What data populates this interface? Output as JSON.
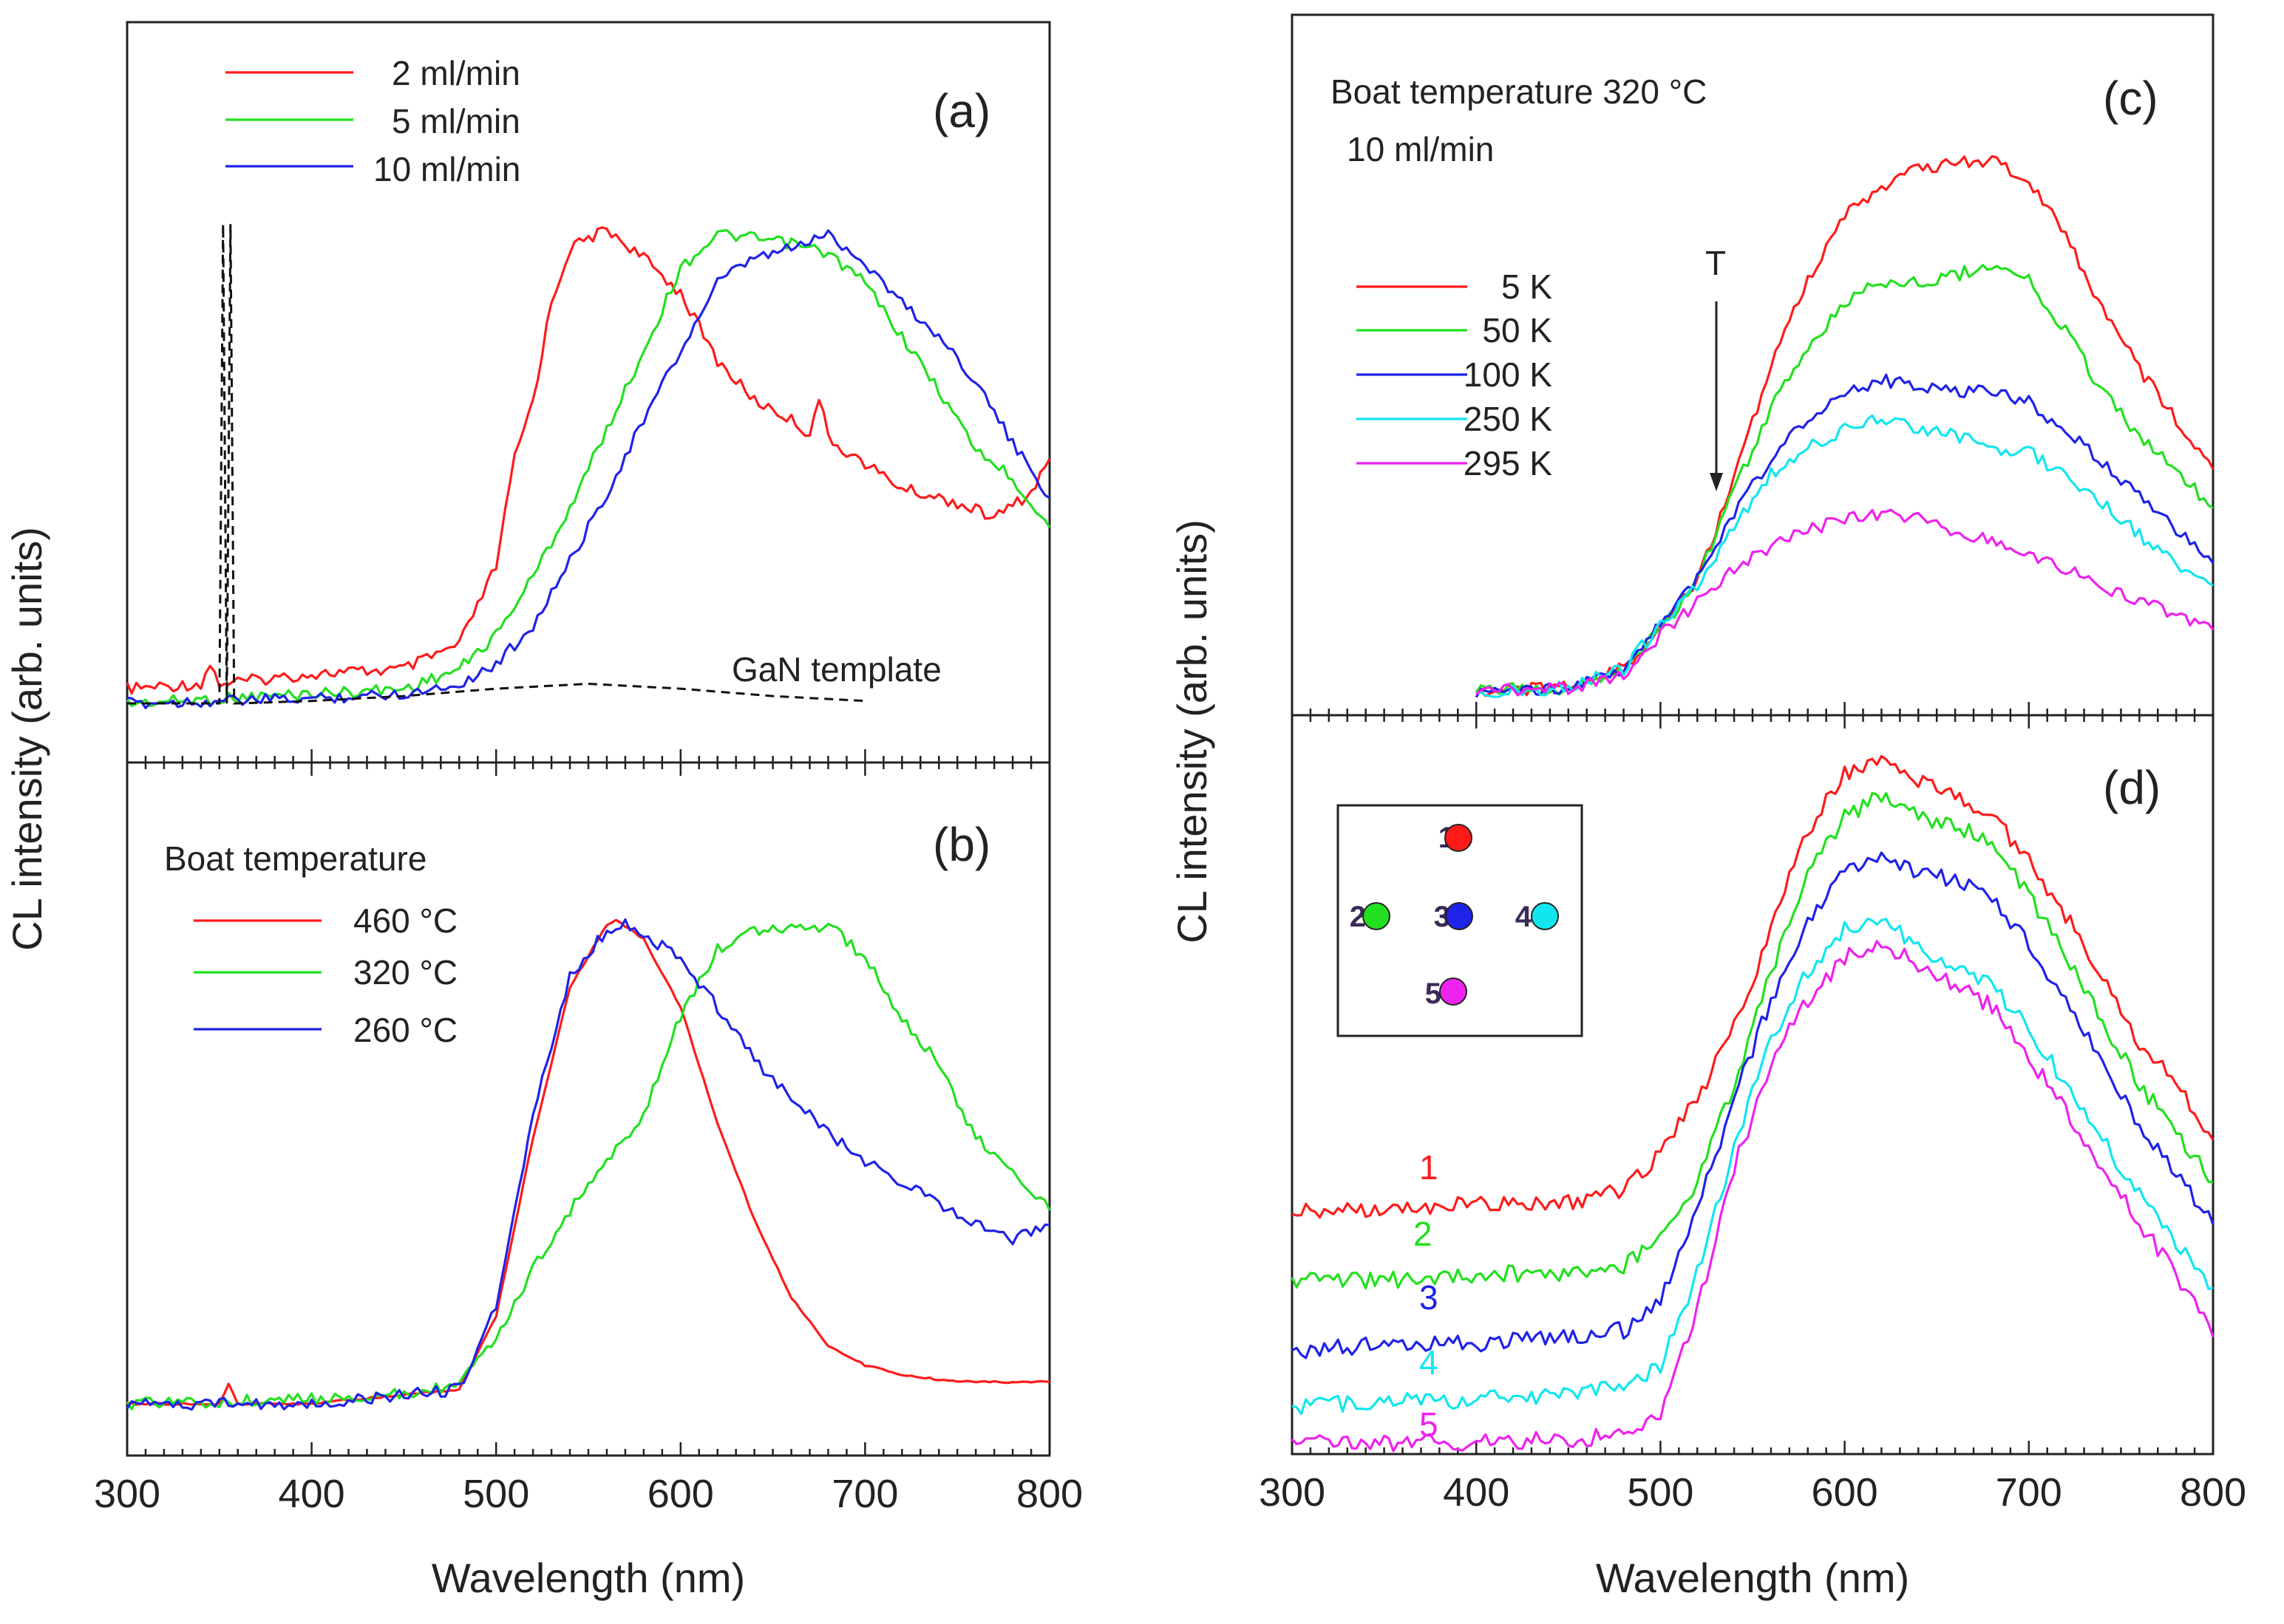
{
  "colors": {
    "red": "#ff1a1a",
    "green": "#22e01f",
    "blue": "#1f22e8",
    "cyan": "#11e6f0",
    "magenta": "#ee22ee",
    "black": "#111111"
  },
  "chart_data": [
    {
      "id": "a",
      "type": "line",
      "panel_label": "(a)",
      "xlim": [
        300,
        800
      ],
      "xticks": [
        "300",
        "400",
        "500",
        "600",
        "700",
        "800"
      ],
      "xlabel": "Wavelength (nm)",
      "ylabel": "CL intensity (arb. units)",
      "ylim": [
        0,
        1
      ],
      "legend": [
        "2 ml/min",
        "5 ml/min",
        "10 ml/min"
      ],
      "legend_position": "top-left",
      "annotation": "GaN template",
      "series": [
        {
          "name": "2 ml/min",
          "color": "red",
          "x": [
            300,
            340,
            345,
            350,
            400,
            450,
            480,
            500,
            510,
            520,
            530,
            540,
            560,
            580,
            600,
            620,
            640,
            660,
            670,
            675,
            680,
            700,
            720,
            750,
            770,
            790,
            800
          ],
          "y": [
            0.03,
            0.04,
            0.08,
            0.04,
            0.06,
            0.07,
            0.12,
            0.28,
            0.5,
            0.62,
            0.82,
            0.93,
            0.97,
            0.91,
            0.84,
            0.7,
            0.62,
            0.58,
            0.55,
            0.63,
            0.54,
            0.49,
            0.44,
            0.41,
            0.38,
            0.43,
            0.5
          ]
        },
        {
          "name": "5 ml/min",
          "color": "green",
          "x": [
            300,
            400,
            450,
            480,
            500,
            520,
            540,
            560,
            580,
            600,
            620,
            640,
            660,
            680,
            700,
            720,
            740,
            760,
            780,
            800
          ],
          "y": [
            0.0,
            0.02,
            0.03,
            0.07,
            0.14,
            0.26,
            0.4,
            0.56,
            0.72,
            0.89,
            0.96,
            0.95,
            0.94,
            0.92,
            0.86,
            0.75,
            0.64,
            0.52,
            0.46,
            0.36
          ]
        },
        {
          "name": "10 ml/min",
          "color": "blue",
          "x": [
            300,
            400,
            450,
            480,
            500,
            520,
            540,
            560,
            580,
            600,
            620,
            640,
            660,
            680,
            700,
            720,
            740,
            760,
            780,
            800
          ],
          "y": [
            0.0,
            0.01,
            0.02,
            0.04,
            0.08,
            0.16,
            0.29,
            0.43,
            0.58,
            0.72,
            0.86,
            0.91,
            0.93,
            0.96,
            0.9,
            0.82,
            0.75,
            0.66,
            0.53,
            0.42
          ]
        },
        {
          "name": "GaN template",
          "color": "black",
          "dashed": true,
          "x": [
            300,
            350,
            352,
            354,
            356,
            358,
            360,
            400,
            450,
            500,
            550,
            600,
            650,
            700
          ],
          "y": [
            0.0,
            0.0,
            0.98,
            0.0,
            0.98,
            0.0,
            0.0,
            0.005,
            0.015,
            0.03,
            0.04,
            0.03,
            0.015,
            0.005
          ]
        }
      ]
    },
    {
      "id": "b",
      "type": "line",
      "panel_label": "(b)",
      "xlim": [
        300,
        800
      ],
      "xticks": [
        "300",
        "400",
        "500",
        "600",
        "700",
        "800"
      ],
      "xlabel": "Wavelength (nm)",
      "ylabel": "CL intensity (arb. units)",
      "ylim": [
        0,
        1
      ],
      "legend_title": "Boat temperature",
      "legend": [
        "460 °C",
        "320 °C",
        "260 °C"
      ],
      "legend_position": "top-left",
      "series": [
        {
          "name": "460 °C",
          "color": "red",
          "x": [
            300,
            350,
            355,
            360,
            400,
            480,
            500,
            520,
            540,
            560,
            565,
            580,
            600,
            620,
            640,
            660,
            680,
            700,
            720,
            740,
            760,
            780,
            800
          ],
          "y": [
            0.0,
            0.0,
            0.04,
            0.0,
            0.0,
            0.03,
            0.18,
            0.55,
            0.86,
            0.99,
            1.0,
            0.96,
            0.82,
            0.58,
            0.38,
            0.22,
            0.12,
            0.08,
            0.06,
            0.05,
            0.045,
            0.045,
            0.045
          ]
        },
        {
          "name": "320 °C",
          "color": "green",
          "x": [
            300,
            400,
            450,
            480,
            500,
            520,
            540,
            560,
            580,
            600,
            620,
            640,
            660,
            680,
            700,
            720,
            740,
            760,
            780,
            800
          ],
          "y": [
            0.0,
            0.01,
            0.02,
            0.04,
            0.13,
            0.28,
            0.4,
            0.5,
            0.6,
            0.8,
            0.94,
            0.98,
            0.98,
            0.99,
            0.92,
            0.8,
            0.7,
            0.55,
            0.48,
            0.4
          ]
        },
        {
          "name": "260 °C",
          "color": "blue",
          "x": [
            300,
            400,
            480,
            500,
            520,
            540,
            560,
            570,
            580,
            600,
            620,
            640,
            660,
            680,
            700,
            720,
            740,
            760,
            780,
            800
          ],
          "y": [
            0.0,
            0.0,
            0.03,
            0.2,
            0.6,
            0.88,
            0.98,
            0.99,
            0.97,
            0.92,
            0.82,
            0.71,
            0.63,
            0.56,
            0.5,
            0.46,
            0.41,
            0.37,
            0.34,
            0.37
          ]
        }
      ]
    },
    {
      "id": "c",
      "type": "line",
      "panel_label": "(c)",
      "xlim": [
        300,
        800
      ],
      "xticks": [
        "300",
        "400",
        "500",
        "600",
        "700",
        "800"
      ],
      "xlabel": "Wavelength (nm)",
      "ylabel": "CL intensity (arb. units)",
      "ylim": [
        0,
        1
      ],
      "annotation_lines": [
        "Boat temperature  320 °C",
        "10 ml/min"
      ],
      "arrow_label": "T",
      "legend": [
        "5 K",
        "50 K",
        "100 K",
        "250 K",
        "295 K"
      ],
      "legend_position": "upper-left",
      "series": [
        {
          "name": "5 K",
          "color": "red",
          "x": [
            400,
            450,
            480,
            500,
            520,
            540,
            560,
            580,
            600,
            620,
            640,
            660,
            680,
            700,
            720,
            740,
            760,
            780,
            800
          ],
          "y": [
            0.02,
            0.025,
            0.06,
            0.13,
            0.22,
            0.4,
            0.61,
            0.76,
            0.88,
            0.93,
            0.96,
            0.97,
            0.98,
            0.94,
            0.84,
            0.71,
            0.6,
            0.51,
            0.42
          ]
        },
        {
          "name": "50 K",
          "color": "green",
          "x": [
            400,
            450,
            480,
            500,
            520,
            540,
            560,
            580,
            600,
            620,
            640,
            660,
            680,
            700,
            720,
            740,
            760,
            780,
            800
          ],
          "y": [
            0.02,
            0.025,
            0.06,
            0.13,
            0.22,
            0.38,
            0.53,
            0.64,
            0.72,
            0.76,
            0.76,
            0.77,
            0.79,
            0.76,
            0.67,
            0.56,
            0.48,
            0.42,
            0.35
          ]
        },
        {
          "name": "100 K",
          "color": "blue",
          "x": [
            400,
            450,
            480,
            500,
            520,
            540,
            560,
            580,
            600,
            620,
            640,
            660,
            680,
            700,
            720,
            740,
            760,
            780,
            800
          ],
          "y": [
            0.02,
            0.025,
            0.06,
            0.14,
            0.22,
            0.34,
            0.44,
            0.51,
            0.56,
            0.58,
            0.57,
            0.56,
            0.56,
            0.54,
            0.49,
            0.43,
            0.37,
            0.31,
            0.25
          ]
        },
        {
          "name": "250 K",
          "color": "cyan",
          "x": [
            400,
            450,
            480,
            500,
            520,
            540,
            560,
            580,
            600,
            620,
            640,
            660,
            680,
            700,
            720,
            740,
            760,
            780,
            800
          ],
          "y": [
            0.02,
            0.025,
            0.06,
            0.14,
            0.21,
            0.32,
            0.41,
            0.46,
            0.49,
            0.51,
            0.49,
            0.48,
            0.46,
            0.45,
            0.41,
            0.36,
            0.3,
            0.25,
            0.21
          ]
        },
        {
          "name": "295 K",
          "color": "magenta",
          "x": [
            400,
            450,
            480,
            500,
            520,
            540,
            560,
            580,
            600,
            620,
            640,
            660,
            680,
            700,
            720,
            740,
            760,
            780,
            800
          ],
          "y": [
            0.02,
            0.025,
            0.05,
            0.12,
            0.18,
            0.24,
            0.28,
            0.31,
            0.33,
            0.34,
            0.33,
            0.31,
            0.29,
            0.27,
            0.24,
            0.21,
            0.18,
            0.16,
            0.13
          ]
        }
      ]
    },
    {
      "id": "d",
      "type": "line",
      "panel_label": "(d)",
      "xlim": [
        300,
        800
      ],
      "xticks": [
        "300",
        "400",
        "500",
        "600",
        "700",
        "800"
      ],
      "xlabel": "Wavelength (nm)",
      "ylabel": "CL intensity (arb. units)",
      "ylim": [
        0,
        1
      ],
      "inset": {
        "markers": [
          {
            "label": "1",
            "color": "red"
          },
          {
            "label": "2",
            "color": "green"
          },
          {
            "label": "3",
            "color": "blue"
          },
          {
            "label": "4",
            "color": "cyan"
          },
          {
            "label": "5",
            "color": "magenta"
          }
        ]
      },
      "series_labels": [
        "1",
        "2",
        "3",
        "4",
        "5"
      ],
      "series": [
        {
          "name": "1",
          "color": "red",
          "x": [
            300,
            350,
            400,
            450,
            480,
            500,
            520,
            540,
            560,
            580,
            600,
            620,
            640,
            660,
            680,
            700,
            720,
            740,
            760,
            780,
            800
          ],
          "y": [
            0.34,
            0.34,
            0.35,
            0.35,
            0.37,
            0.42,
            0.5,
            0.6,
            0.74,
            0.88,
            0.96,
            0.98,
            0.95,
            0.93,
            0.9,
            0.84,
            0.76,
            0.67,
            0.58,
            0.52,
            0.44
          ]
        },
        {
          "name": "2",
          "color": "green",
          "x": [
            300,
            350,
            400,
            450,
            480,
            500,
            520,
            540,
            560,
            580,
            600,
            620,
            640,
            660,
            680,
            700,
            720,
            740,
            760,
            780,
            800
          ],
          "y": [
            0.24,
            0.24,
            0.25,
            0.25,
            0.26,
            0.3,
            0.38,
            0.52,
            0.68,
            0.82,
            0.9,
            0.93,
            0.9,
            0.89,
            0.86,
            0.79,
            0.7,
            0.61,
            0.52,
            0.45,
            0.38
          ]
        },
        {
          "name": "3",
          "color": "blue",
          "x": [
            300,
            350,
            400,
            450,
            480,
            500,
            520,
            540,
            560,
            580,
            600,
            620,
            640,
            660,
            680,
            700,
            720,
            740,
            760,
            780,
            800
          ],
          "y": [
            0.14,
            0.15,
            0.15,
            0.16,
            0.17,
            0.21,
            0.34,
            0.5,
            0.64,
            0.75,
            0.82,
            0.85,
            0.82,
            0.81,
            0.78,
            0.72,
            0.64,
            0.55,
            0.46,
            0.39,
            0.32
          ]
        },
        {
          "name": "4",
          "color": "cyan",
          "x": [
            300,
            350,
            400,
            450,
            480,
            500,
            520,
            540,
            560,
            580,
            600,
            620,
            640,
            660,
            680,
            700,
            720,
            740,
            760,
            780,
            800
          ],
          "y": [
            0.06,
            0.07,
            0.07,
            0.08,
            0.09,
            0.12,
            0.25,
            0.43,
            0.58,
            0.68,
            0.74,
            0.76,
            0.71,
            0.69,
            0.66,
            0.6,
            0.52,
            0.44,
            0.36,
            0.29,
            0.23
          ]
        },
        {
          "name": "5",
          "color": "magenta",
          "x": [
            300,
            350,
            400,
            450,
            480,
            500,
            520,
            540,
            560,
            580,
            600,
            620,
            640,
            660,
            680,
            700,
            720,
            740,
            760,
            780,
            800
          ],
          "y": [
            0.01,
            0.01,
            0.01,
            0.015,
            0.02,
            0.05,
            0.2,
            0.4,
            0.55,
            0.64,
            0.7,
            0.72,
            0.69,
            0.66,
            0.63,
            0.56,
            0.48,
            0.4,
            0.32,
            0.25,
            0.16
          ]
        }
      ]
    }
  ]
}
